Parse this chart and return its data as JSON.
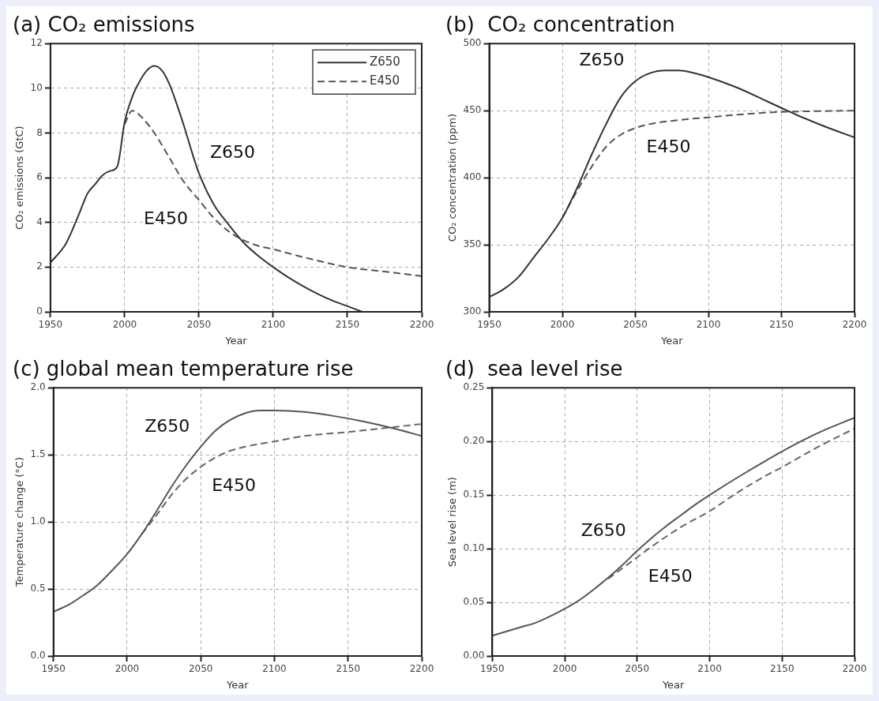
{
  "chart_data": [
    {
      "type": "line",
      "title": "(a) CO₂ emissions",
      "xlabel": "Year",
      "ylabel": "CO₂ emissions (GtC)",
      "xlim": [
        1950,
        2200
      ],
      "xticks": [
        1950,
        2000,
        2050,
        2100,
        2150,
        2200
      ],
      "ylim": [
        0,
        12
      ],
      "yticks": [
        0,
        2,
        4,
        6,
        8,
        10,
        12
      ],
      "grid": true,
      "legend": "top right",
      "series": [
        {
          "name": "Z650",
          "color": "#333333",
          "line_style": "solid",
          "x": [
            1950,
            1960,
            1965,
            1970,
            1975,
            1980,
            1985,
            1990,
            1995,
            2000,
            2005,
            2010,
            2015,
            2020,
            2025,
            2030,
            2035,
            2040,
            2045,
            2050,
            2060,
            2070,
            2080,
            2090,
            2100,
            2110,
            2120,
            2130,
            2140,
            2150,
            2160
          ],
          "values": [
            2.2,
            3.0,
            3.7,
            4.5,
            5.3,
            5.7,
            6.1,
            6.3,
            6.5,
            8.5,
            9.6,
            10.3,
            10.8,
            11.0,
            10.8,
            10.2,
            9.3,
            8.3,
            7.2,
            6.2,
            4.8,
            3.9,
            3.1,
            2.5,
            2.0,
            1.55,
            1.15,
            0.8,
            0.5,
            0.25,
            0.0
          ]
        },
        {
          "name": "E450",
          "color": "#555555",
          "line_style": "dashed",
          "x": [
            2000,
            2005,
            2010,
            2020,
            2030,
            2040,
            2050,
            2060,
            2070,
            2080,
            2090,
            2100,
            2120,
            2150,
            2175,
            2200
          ],
          "values": [
            8.4,
            9.0,
            8.8,
            8.0,
            6.9,
            5.8,
            5.0,
            4.2,
            3.6,
            3.2,
            2.95,
            2.8,
            2.45,
            2.0,
            1.8,
            1.6
          ]
        }
      ],
      "marker": "none"
    },
    {
      "type": "line",
      "title": "(b)  CO₂ concentration",
      "xlabel": "Year",
      "ylabel": "CO₂ concentration (ppm)",
      "xlim": [
        1950,
        2200
      ],
      "xticks": [
        1950,
        2000,
        2050,
        2100,
        2150,
        2200
      ],
      "ylim": [
        300,
        500
      ],
      "yticks": [
        300,
        350,
        400,
        450,
        500
      ],
      "grid": true,
      "series": [
        {
          "name": "Z650",
          "color": "#333333",
          "line_style": "solid",
          "x": [
            1950,
            1960,
            1970,
            1980,
            1990,
            2000,
            2010,
            2020,
            2030,
            2040,
            2050,
            2060,
            2070,
            2080,
            2090,
            2100,
            2120,
            2140,
            2150,
            2160,
            2180,
            2200
          ],
          "values": [
            311,
            317,
            326,
            340,
            354,
            370,
            392,
            417,
            440,
            460,
            472,
            478,
            480,
            480,
            478,
            475,
            467,
            457,
            452,
            447,
            438,
            430
          ]
        },
        {
          "name": "E450",
          "color": "#555555",
          "line_style": "dashed",
          "x": [
            2000,
            2010,
            2020,
            2030,
            2040,
            2050,
            2060,
            2080,
            2100,
            2120,
            2150,
            2200
          ],
          "values": [
            370,
            390,
            408,
            423,
            432,
            437,
            440,
            443,
            445,
            447,
            449,
            450
          ]
        }
      ],
      "marker": "none"
    },
    {
      "type": "line",
      "title": "(c) global mean temperature rise",
      "xlabel": "Year",
      "ylabel": "Temperature change (°C)",
      "xlim": [
        1950,
        2200
      ],
      "xticks": [
        1950,
        2000,
        2050,
        2100,
        2150,
        2200
      ],
      "ylim": [
        0,
        2
      ],
      "yticks": [
        {
          "value": 0,
          "label": "0.0"
        },
        {
          "value": 0.5,
          "label": "0.5"
        },
        {
          "value": 1,
          "label": "1.0"
        },
        {
          "value": 1.5,
          "label": "1.5"
        },
        {
          "value": 2,
          "label": "2.0"
        }
      ],
      "grid": true,
      "series": [
        {
          "name": "Z650",
          "color": "#555555",
          "line_style": "solid",
          "x": [
            1950,
            1960,
            1970,
            1980,
            1990,
            2000,
            2010,
            2020,
            2030,
            2040,
            2050,
            2060,
            2070,
            2080,
            2090,
            2100,
            2120,
            2140,
            2160,
            2180,
            2200
          ],
          "values": [
            0.33,
            0.38,
            0.45,
            0.53,
            0.64,
            0.76,
            0.91,
            1.08,
            1.26,
            1.42,
            1.56,
            1.68,
            1.76,
            1.81,
            1.83,
            1.83,
            1.82,
            1.79,
            1.75,
            1.7,
            1.64
          ]
        },
        {
          "name": "E450",
          "color": "#666666",
          "line_style": "dashed",
          "x": [
            2010,
            2020,
            2030,
            2040,
            2050,
            2060,
            2070,
            2080,
            2100,
            2120,
            2150,
            2175,
            2200
          ],
          "values": [
            0.91,
            1.05,
            1.2,
            1.32,
            1.41,
            1.48,
            1.53,
            1.56,
            1.6,
            1.64,
            1.67,
            1.7,
            1.73
          ]
        }
      ],
      "marker": "none"
    },
    {
      "type": "line",
      "title": "(d)  sea level rise",
      "xlabel": "Year",
      "ylabel": "Sea level rise (m)",
      "xlim": [
        1950,
        2200
      ],
      "xticks": [
        1950,
        2000,
        2050,
        2100,
        2150,
        2200
      ],
      "ylim": [
        0,
        0.25
      ],
      "yticks": [
        {
          "value": 0,
          "label": "0.00"
        },
        {
          "value": 0.05,
          "label": "0.05"
        },
        {
          "value": 0.1,
          "label": "0.10"
        },
        {
          "value": 0.15,
          "label": "0.15"
        },
        {
          "value": 0.2,
          "label": "0.20"
        },
        {
          "value": 0.25,
          "label": "0.25"
        }
      ],
      "grid": true,
      "series": [
        {
          "name": "Z650",
          "color": "#555555",
          "line_style": "solid",
          "x": [
            1950,
            1960,
            1970,
            1980,
            1990,
            2000,
            2010,
            2020,
            2030,
            2040,
            2050,
            2060,
            2070,
            2080,
            2090,
            2100,
            2120,
            2140,
            2160,
            2180,
            2200
          ],
          "values": [
            0.019,
            0.023,
            0.027,
            0.031,
            0.037,
            0.044,
            0.052,
            0.062,
            0.073,
            0.085,
            0.098,
            0.11,
            0.121,
            0.131,
            0.141,
            0.15,
            0.167,
            0.183,
            0.198,
            0.211,
            0.222
          ]
        },
        {
          "name": "E450",
          "color": "#666666",
          "line_style": "dashed",
          "x": [
            2030,
            2040,
            2050,
            2060,
            2080,
            2100,
            2120,
            2140,
            2150,
            2175,
            2200
          ],
          "values": [
            0.072,
            0.082,
            0.092,
            0.102,
            0.12,
            0.135,
            0.153,
            0.169,
            0.176,
            0.195,
            0.212
          ]
        }
      ],
      "marker": "none"
    }
  ]
}
